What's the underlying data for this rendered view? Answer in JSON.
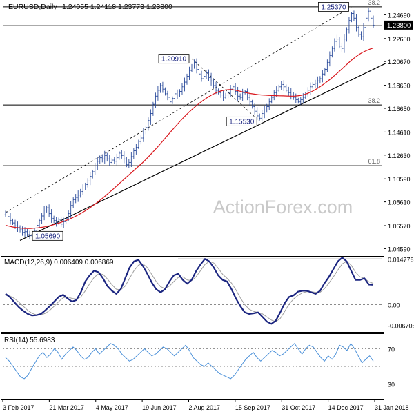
{
  "header": {
    "symbol": "EURUSD,Daily",
    "ohlc": "1.24055 1.24118 1.23773 1.23800"
  },
  "watermark": "ActionForex.com",
  "colors": {
    "bullish": "#2a4b9b",
    "bearish": "#2a4b9b",
    "ma": "#d9151b",
    "trendline": "#000000",
    "fib_line": "#000000",
    "macd_line": "#1b2580",
    "macd_signal": "#9e9e9e",
    "rsi": "#4a90d9",
    "rsi_levels": "#555555",
    "price_label_bg": "#000000",
    "price_label_text": "#ffffff",
    "annotation_text": "#1b2580",
    "fib_text": "#666666",
    "axis_text": "#000000"
  },
  "chart_data": [
    {
      "type": "candlestick",
      "title": "EURUSD,Daily",
      "x_tick_labels": [
        "3 Feb 2017",
        "21 Mar 2017",
        "4 May 2017",
        "19 Jun 2017",
        "2 Aug 2017",
        "15 Sep 2017",
        "31 Oct 2017",
        "14 Dec 2017",
        "31 Jan 2018"
      ],
      "y_tick_labels": [
        "1.24690",
        "1.22650",
        "1.20670",
        "1.18630",
        "1.16650",
        "1.14610",
        "1.12630",
        "1.10590",
        "1.08610",
        "1.06570",
        "1.04590"
      ],
      "ylim": [
        1.0408,
        1.2578
      ],
      "current_price_label": "1.23800",
      "current_price": 1.238,
      "annotations": [
        {
          "text": "1.25370",
          "value": 1.2537
        },
        {
          "text": "1.20910",
          "value": 1.2091
        },
        {
          "text": "1.15530",
          "value": 1.1553
        },
        {
          "text": "1.05690",
          "value": 1.0569
        }
      ],
      "fib_levels": [
        {
          "label": "38.2",
          "value": 1.2537
        },
        {
          "label": "38.2",
          "value": 1.1694
        },
        {
          "label": "61.8",
          "value": 1.1172
        }
      ],
      "closes": [
        1.077,
        1.0735,
        1.07,
        1.068,
        1.0655,
        1.064,
        1.062,
        1.06,
        1.0605,
        1.058,
        1.057,
        1.059,
        1.061,
        1.066,
        1.07,
        1.074,
        1.079,
        1.081,
        1.076,
        1.072,
        1.07,
        1.068,
        1.071,
        1.067,
        1.069,
        1.072,
        1.076,
        1.083,
        1.088,
        1.09,
        1.092,
        1.095,
        1.098,
        1.101,
        1.104,
        1.108,
        1.112,
        1.117,
        1.121,
        1.124,
        1.123,
        1.126,
        1.123,
        1.12,
        1.122,
        1.121,
        1.124,
        1.128,
        1.126,
        1.123,
        1.118,
        1.12,
        1.125,
        1.13,
        1.133,
        1.138,
        1.141,
        1.146,
        1.15,
        1.156,
        1.162,
        1.17,
        1.177,
        1.182,
        1.186,
        1.183,
        1.179,
        1.176,
        1.172,
        1.175,
        1.179,
        1.178,
        1.181,
        1.185,
        1.189,
        1.194,
        1.199,
        1.203,
        1.206,
        1.2,
        1.196,
        1.192,
        1.194,
        1.197,
        1.193,
        1.19,
        1.186,
        1.182,
        1.18,
        1.178,
        1.176,
        1.178,
        1.18,
        1.183,
        1.185,
        1.181,
        1.177,
        1.176,
        1.18,
        1.181,
        1.176,
        1.172,
        1.168,
        1.164,
        1.16,
        1.158,
        1.162,
        1.165,
        1.168,
        1.172,
        1.176,
        1.18,
        1.182,
        1.185,
        1.187,
        1.185,
        1.182,
        1.18,
        1.178,
        1.176,
        1.174,
        1.172,
        1.174,
        1.176,
        1.179,
        1.182,
        1.185,
        1.187,
        1.188,
        1.19,
        1.192,
        1.196,
        1.2,
        1.206,
        1.212,
        1.218,
        1.224,
        1.226,
        1.22,
        1.218,
        1.226,
        1.234,
        1.242,
        1.248,
        1.244,
        1.236,
        1.23,
        1.228,
        1.236,
        1.244,
        1.25,
        1.244,
        1.238
      ],
      "ma_values": [
        1.066,
        1.0652,
        1.0645,
        1.064,
        1.0636,
        1.0634,
        1.0633,
        1.0633,
        1.0635,
        1.0638,
        1.0642,
        1.0647,
        1.0654,
        1.0662,
        1.0671,
        1.0681,
        1.0692,
        1.0704,
        1.0717,
        1.0731,
        1.0747,
        1.0764,
        1.0782,
        1.0802,
        1.0823,
        1.0846,
        1.087,
        1.0895,
        1.0921,
        1.0948,
        1.0975,
        1.1003,
        1.1031,
        1.1059,
        1.1087,
        1.1114,
        1.1142,
        1.117,
        1.1198,
        1.1228,
        1.126,
        1.1293,
        1.1327,
        1.1362,
        1.1398,
        1.1434,
        1.147,
        1.1505,
        1.154,
        1.1573,
        1.1605,
        1.1635,
        1.1663,
        1.169,
        1.1714,
        1.1737,
        1.1758,
        1.1777,
        1.1793,
        1.1806,
        1.1816,
        1.1823,
        1.1826,
        1.1825,
        1.1819,
        1.1812,
        1.1805,
        1.1798,
        1.1792,
        1.1787,
        1.1783,
        1.178,
        1.1778,
        1.1776,
        1.1775,
        1.1774,
        1.1773,
        1.1772,
        1.1771,
        1.177,
        1.177,
        1.1772,
        1.1777,
        1.1785,
        1.1796,
        1.181,
        1.1827,
        1.1846,
        1.1867,
        1.189,
        1.1914,
        1.194,
        1.1967,
        1.1995,
        1.2023,
        1.2052,
        1.208,
        1.2105,
        1.2127,
        1.2145,
        1.216,
        1.2173,
        1.2184
      ]
    },
    {
      "type": "line",
      "title": "MACD(12,26,9) 0.006409 0.006869",
      "y_tick_labels": [
        "0.014776",
        "0.00",
        "-0.006705"
      ],
      "ylim": [
        -0.0086,
        0.0153
      ],
      "series": [
        {
          "name": "MACD",
          "values": [
            0.0035,
            0.0024,
            0.0008,
            -0.0008,
            -0.002,
            -0.003,
            -0.0035,
            -0.0034,
            -0.003,
            -0.0018,
            -0.0005,
            0.001,
            0.0025,
            0.0032,
            0.002,
            0.001,
            0.0015,
            0.004,
            0.0075,
            0.0095,
            0.011,
            0.0105,
            0.0085,
            0.006,
            0.0045,
            0.0035,
            0.005,
            0.0085,
            0.012,
            0.014,
            0.0145,
            0.0125,
            0.01,
            0.0072,
            0.005,
            0.004,
            0.005,
            0.0075,
            0.0095,
            0.01,
            0.008,
            0.0068,
            0.008,
            0.0108,
            0.013,
            0.0148,
            0.014,
            0.012,
            0.0095,
            0.008,
            0.0075,
            0.005,
            0.002,
            -0.0005,
            -0.0025,
            -0.003,
            -0.0028,
            -0.0025,
            -0.004,
            -0.0055,
            -0.0062,
            -0.0052,
            -0.0025,
            0.0005,
            0.0025,
            0.003,
            0.0042,
            0.0045,
            0.0045,
            0.004,
            0.0035,
            0.0045,
            0.007,
            0.009,
            0.0115,
            0.014,
            0.0152,
            0.014,
            0.011,
            0.008,
            0.008,
            0.0085,
            0.0065,
            0.0064
          ]
        },
        {
          "name": "Signal",
          "values": [
            0.003,
            0.0028,
            0.002,
            0.0008,
            -0.0005,
            -0.0018,
            -0.0028,
            -0.0033,
            -0.0033,
            -0.0028,
            -0.0018,
            -0.0005,
            0.001,
            0.0022,
            0.0025,
            0.002,
            0.0018,
            0.0025,
            0.0045,
            0.0068,
            0.0088,
            0.01,
            0.0098,
            0.0083,
            0.0065,
            0.005,
            0.0048,
            0.006,
            0.0085,
            0.011,
            0.0128,
            0.0132,
            0.012,
            0.0098,
            0.0075,
            0.0058,
            0.0052,
            0.006,
            0.0075,
            0.0088,
            0.009,
            0.008,
            0.0078,
            0.009,
            0.011,
            0.013,
            0.014,
            0.0135,
            0.0118,
            0.0098,
            0.0085,
            0.007,
            0.0048,
            0.0022,
            0.0,
            -0.0015,
            -0.0022,
            -0.0025,
            -0.003,
            -0.004,
            -0.005,
            -0.0055,
            -0.0045,
            -0.0022,
            0.0002,
            0.0018,
            0.003,
            0.0038,
            0.0042,
            0.0042,
            0.004,
            0.004,
            0.0052,
            0.007,
            0.009,
            0.0112,
            0.0132,
            0.014,
            0.0128,
            0.0105,
            0.009,
            0.0085,
            0.0074,
            0.0069
          ]
        }
      ]
    },
    {
      "type": "line",
      "title": "RSI(14) 55.6983",
      "y_tick_labels": [
        "70",
        "30"
      ],
      "ylim": [
        14,
        86
      ],
      "levels": [
        70,
        50,
        30
      ],
      "series": [
        {
          "name": "RSI",
          "values": [
            60,
            56,
            50,
            44,
            38,
            36,
            40,
            48,
            55,
            62,
            66,
            60,
            64,
            70,
            66,
            58,
            64,
            68,
            72,
            68,
            62,
            58,
            60,
            66,
            70,
            64,
            68,
            72,
            76,
            74,
            70,
            64,
            60,
            56,
            58,
            62,
            66,
            70,
            66,
            62,
            64,
            68,
            72,
            70,
            66,
            62,
            66,
            70,
            74,
            68,
            60,
            56,
            52,
            50,
            54,
            50,
            46,
            42,
            40,
            38,
            36,
            40,
            46,
            52,
            58,
            62,
            66,
            60,
            56,
            60,
            64,
            68,
            66,
            62,
            64,
            68,
            72,
            76,
            70,
            64,
            70,
            74,
            72,
            66,
            60,
            56,
            62,
            58,
            64,
            74,
            72,
            68,
            76,
            70,
            62,
            54,
            58,
            62,
            56
          ]
        }
      ]
    }
  ]
}
